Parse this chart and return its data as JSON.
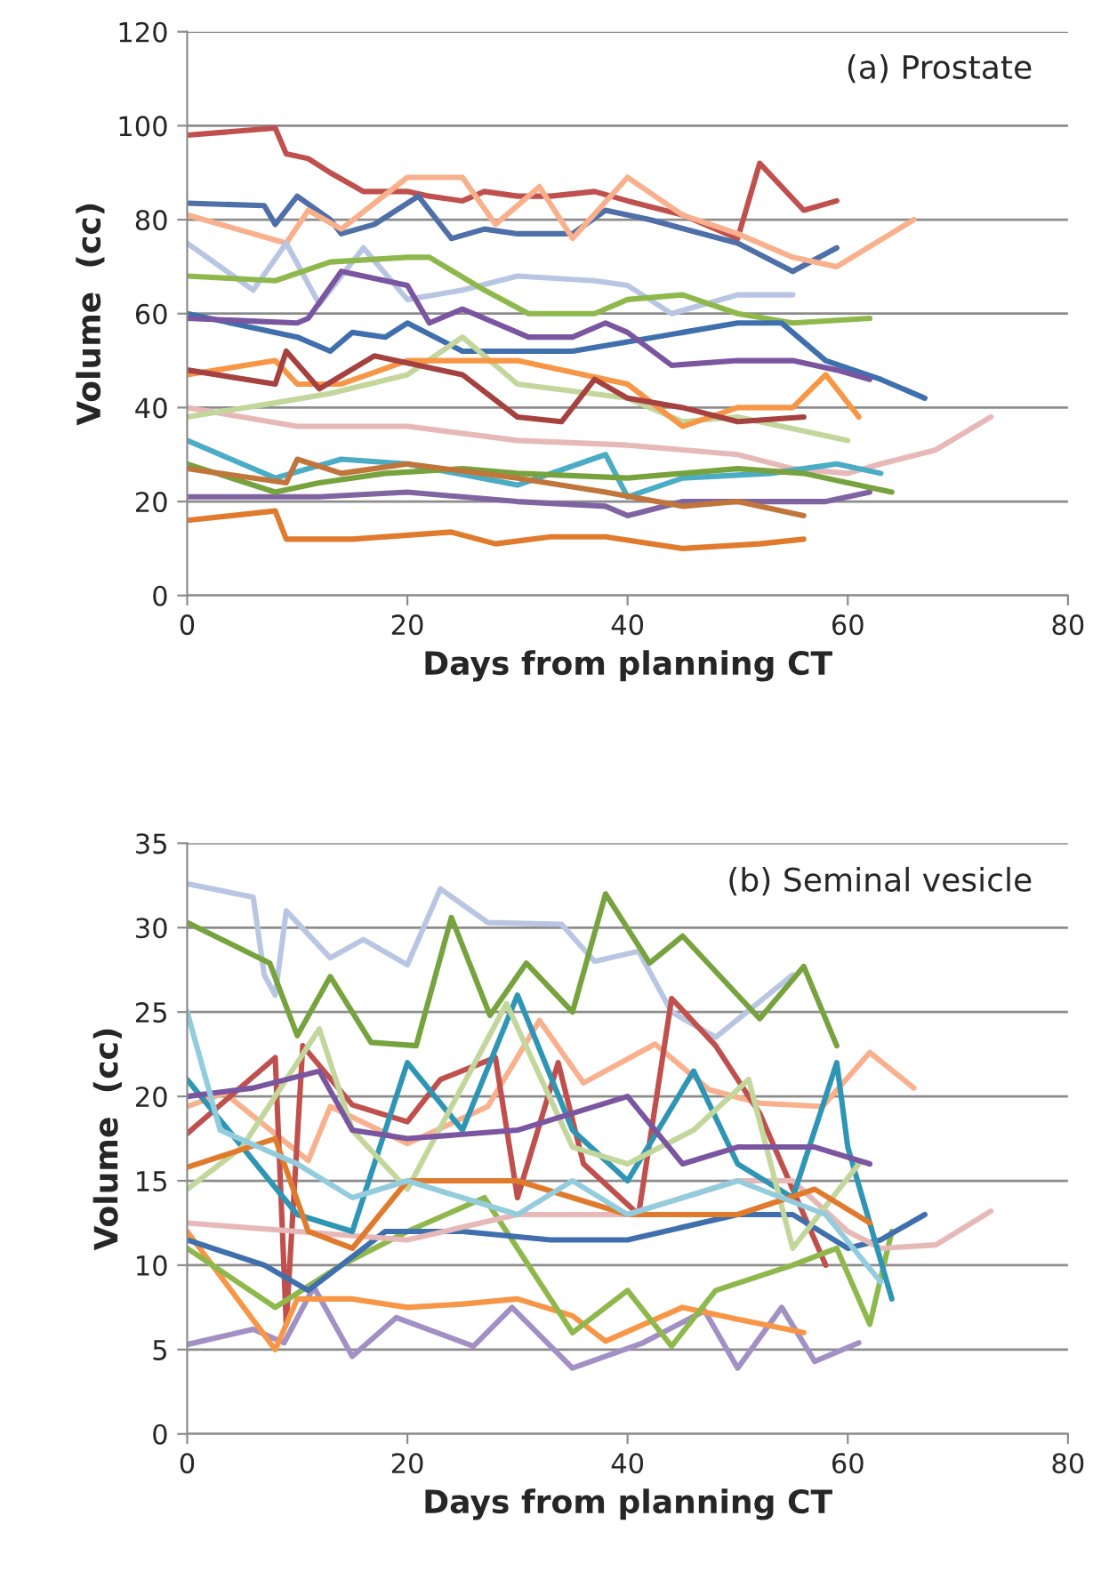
{
  "chart_data": [
    {
      "type": "line",
      "xlabel": "Days from planning CT",
      "ylabel": "Volume  (cc)",
      "annotations": [
        "(a) Prostate"
      ],
      "xlim": [
        0,
        80
      ],
      "xticks": [
        0,
        20,
        40,
        60,
        80
      ],
      "ylim": [
        0,
        120
      ],
      "yticks": [
        0,
        20,
        40,
        60,
        80,
        100,
        120
      ],
      "grid": "y",
      "legend": false,
      "marker": "none",
      "line_style": "solid",
      "series": [
        {
          "color": "#c0504d",
          "x": [
            0,
            8,
            9,
            11,
            13,
            16,
            20,
            22,
            25,
            27,
            30,
            33,
            37,
            40,
            45,
            50,
            52,
            56,
            59
          ],
          "values": [
            98,
            99.5,
            94,
            93,
            90,
            86,
            86,
            85,
            84,
            86,
            85,
            85,
            86,
            84,
            81,
            76,
            92,
            82,
            84
          ]
        },
        {
          "color": "#4f6fa8",
          "x": [
            0,
            7,
            8,
            10,
            13,
            14,
            17,
            21,
            24,
            27,
            30,
            35,
            38,
            42,
            50,
            55,
            59
          ],
          "values": [
            83.5,
            83,
            79,
            85,
            80,
            77,
            79,
            85,
            76,
            78,
            77,
            77,
            82,
            80,
            75,
            69,
            74
          ]
        },
        {
          "color": "#f9b08c",
          "x": [
            0,
            9,
            11,
            14,
            20,
            25,
            28,
            32,
            35,
            40,
            45,
            50,
            55,
            59,
            66
          ],
          "values": [
            81,
            75,
            82,
            78,
            89,
            89,
            79,
            87,
            76,
            89,
            81,
            77,
            72,
            70,
            80
          ]
        },
        {
          "color": "#b9c6e3",
          "x": [
            0,
            6,
            9,
            12,
            16,
            20,
            25,
            30,
            37,
            40,
            44,
            50,
            55
          ],
          "values": [
            75,
            65,
            75,
            62,
            74,
            63,
            65,
            68,
            67,
            66,
            60,
            64,
            64
          ]
        },
        {
          "color": "#8fb84c",
          "x": [
            0,
            8,
            13,
            20,
            22,
            27,
            31,
            37,
            40,
            45,
            50,
            55,
            62
          ],
          "values": [
            68,
            67,
            71,
            72,
            72,
            65,
            60,
            60,
            63,
            64,
            60,
            58,
            59
          ]
        },
        {
          "color": "#3f6fad",
          "x": [
            0,
            10,
            13,
            15,
            18,
            20,
            25,
            30,
            35,
            40,
            45,
            50,
            54,
            58,
            63,
            67
          ],
          "values": [
            60,
            55,
            52,
            56,
            55,
            58,
            52,
            52,
            52,
            54,
            56,
            58,
            58,
            50,
            46,
            42
          ]
        },
        {
          "color": "#7a56a0",
          "x": [
            0,
            10,
            11,
            14,
            20,
            22,
            25,
            31,
            35,
            38,
            40,
            44,
            50,
            55,
            59,
            62
          ],
          "values": [
            59,
            58,
            59,
            69,
            66,
            58,
            61,
            55,
            55,
            58,
            56,
            49,
            50,
            50,
            48,
            46
          ]
        },
        {
          "color": "#e07b2e",
          "x": [
            0,
            8,
            9,
            15,
            24,
            28,
            33,
            38,
            45,
            52,
            56
          ],
          "values": [
            16,
            18,
            12,
            12,
            13.5,
            11,
            12.5,
            12.5,
            10,
            11,
            12
          ]
        },
        {
          "color": "#8064a2",
          "x": [
            0,
            12,
            20,
            30,
            38,
            40,
            45,
            53,
            58,
            62
          ],
          "values": [
            21,
            21,
            22,
            20,
            19,
            17,
            20,
            20,
            20,
            22
          ]
        },
        {
          "color": "#e6b9b8",
          "x": [
            0,
            10,
            20,
            30,
            40,
            50,
            55,
            60,
            63,
            68,
            73
          ],
          "values": [
            40,
            36,
            36,
            33,
            32,
            30,
            27,
            26,
            28,
            31,
            38
          ]
        },
        {
          "color": "#4bacc6",
          "x": [
            0,
            8,
            14,
            20,
            30,
            38,
            40,
            45,
            53,
            59,
            63
          ],
          "values": [
            33,
            25,
            29,
            28,
            23.5,
            30,
            21,
            25,
            26,
            28,
            26
          ]
        },
        {
          "color": "#77a33f",
          "x": [
            0,
            8,
            12,
            18,
            25,
            30,
            40,
            50,
            56,
            60,
            64
          ],
          "values": [
            28,
            22,
            24,
            26,
            27,
            26,
            25,
            27,
            26,
            24,
            22
          ]
        },
        {
          "color": "#c0753a",
          "x": [
            0,
            9,
            10,
            14,
            20,
            30,
            38,
            45,
            50,
            56
          ],
          "values": [
            27,
            24,
            29,
            26,
            28,
            25,
            22,
            19,
            20,
            17
          ]
        },
        {
          "color": "#c3d69b",
          "x": [
            0,
            8,
            13,
            20,
            25,
            30,
            40,
            45,
            50,
            56,
            60
          ],
          "values": [
            38,
            41,
            43,
            47,
            55,
            45,
            42,
            37,
            38,
            35,
            33
          ]
        },
        {
          "color": "#f79646",
          "x": [
            0,
            8,
            10,
            14,
            20,
            30,
            40,
            45,
            50,
            55,
            58,
            61
          ],
          "values": [
            47,
            50,
            45,
            45,
            50,
            50,
            45,
            36,
            40,
            40,
            47,
            38
          ]
        },
        {
          "color": "#a5413e",
          "x": [
            0,
            8,
            9,
            12,
            17,
            25,
            30,
            34,
            37,
            40,
            45,
            50,
            56
          ],
          "values": [
            48,
            45,
            52,
            44,
            51,
            47,
            38,
            37,
            46,
            42,
            40,
            37,
            38
          ]
        }
      ]
    },
    {
      "type": "line",
      "xlabel": "Days from planning CT",
      "ylabel": "Volume  (cc)",
      "annotations": [
        "(b) Seminal vesicle"
      ],
      "xlim": [
        0,
        80
      ],
      "xticks": [
        0,
        20,
        40,
        60,
        80
      ],
      "ylim": [
        0,
        35
      ],
      "yticks": [
        0,
        5,
        10,
        15,
        20,
        25,
        30,
        35
      ],
      "grid": "y",
      "legend": false,
      "marker": "none",
      "line_style": "solid",
      "series": [
        {
          "color": "#b9c6e3",
          "x": [
            0,
            6,
            7,
            8,
            9,
            13,
            16,
            20,
            23,
            27.3,
            34,
            37,
            41,
            44,
            48,
            55
          ],
          "values": [
            32.6,
            31.8,
            27.2,
            26,
            31,
            28.2,
            29.3,
            27.8,
            32.3,
            30.3,
            30.2,
            28,
            28.6,
            25,
            23.5,
            27.2
          ]
        },
        {
          "color": "#77a33f",
          "x": [
            0,
            7.5,
            10,
            13,
            16.7,
            20.8,
            24,
            27.5,
            30.8,
            35,
            38,
            42,
            45,
            52,
            56,
            59
          ],
          "values": [
            30.3,
            27.9,
            23.6,
            27.1,
            23.2,
            23,
            30.6,
            24.8,
            27.9,
            25,
            32,
            27.9,
            29.5,
            24.6,
            27.7,
            23
          ]
        },
        {
          "color": "#f9b08c",
          "x": [
            0,
            3.4,
            11,
            13,
            20,
            27.3,
            32,
            36,
            42.5,
            47.4,
            52,
            57.7,
            62,
            66
          ],
          "values": [
            19.4,
            20.2,
            16.2,
            19.4,
            17.2,
            19.4,
            24.5,
            20.8,
            23.1,
            20.4,
            19.6,
            19.4,
            22.6,
            20.5
          ]
        },
        {
          "color": "#c0504d",
          "x": [
            0,
            8,
            9,
            10.5,
            15,
            20,
            23,
            28,
            30,
            33.7,
            36,
            41,
            44,
            48,
            52,
            58
          ],
          "values": [
            17.8,
            22.3,
            6.5,
            23,
            19.5,
            18.5,
            21,
            22.3,
            14,
            22,
            16,
            13,
            25.8,
            23,
            19,
            10
          ]
        },
        {
          "color": "#a28fc4",
          "x": [
            0,
            6,
            8.8,
            11.5,
            15,
            19,
            26,
            29.5,
            35,
            41.4,
            47,
            50,
            54,
            57,
            61
          ],
          "values": [
            5.3,
            6.2,
            5.4,
            8.7,
            4.6,
            6.9,
            5.2,
            7.5,
            3.9,
            5.4,
            7.3,
            3.9,
            7.5,
            4.3,
            5.4
          ]
        },
        {
          "color": "#f79646",
          "x": [
            0,
            8,
            10,
            15,
            20,
            25,
            30,
            35,
            38,
            45,
            50,
            56
          ],
          "values": [
            12,
            5,
            8,
            8,
            7.5,
            7.7,
            8,
            7,
            5.5,
            7.5,
            6.8,
            6
          ]
        },
        {
          "color": "#8fb84c",
          "x": [
            0,
            8,
            14,
            20,
            27,
            35,
            40,
            44,
            48,
            55,
            59,
            62,
            64
          ],
          "values": [
            11,
            7.5,
            10,
            12,
            14,
            6,
            8.5,
            5.2,
            8.5,
            10,
            11,
            6.5,
            12
          ]
        },
        {
          "color": "#3f6fad",
          "x": [
            0,
            7,
            11,
            18,
            25,
            33,
            40,
            50,
            55,
            60,
            63,
            67
          ],
          "values": [
            11.5,
            10,
            8.5,
            12,
            12,
            11.5,
            11.5,
            13,
            13,
            11,
            11.5,
            13
          ]
        },
        {
          "color": "#e6b9b8",
          "x": [
            0,
            10,
            20,
            30,
            40,
            50,
            55,
            60,
            63,
            68,
            73
          ],
          "values": [
            12.5,
            12,
            11.5,
            13,
            13,
            15,
            15,
            12,
            11,
            11.2,
            13.2
          ]
        },
        {
          "color": "#2f95b5",
          "x": [
            0,
            5,
            10,
            15,
            20,
            25,
            30,
            35,
            40,
            46,
            50,
            55,
            59,
            60,
            64
          ],
          "values": [
            21,
            17,
            13,
            12,
            22,
            18,
            26,
            18,
            15,
            21.5,
            16,
            14,
            22,
            17,
            8
          ]
        },
        {
          "color": "#c3d69b",
          "x": [
            0,
            5,
            12,
            15,
            20,
            29,
            35,
            40,
            46,
            51,
            55,
            61
          ],
          "values": [
            14.5,
            17,
            24,
            18,
            14.5,
            25.5,
            17,
            16,
            18,
            21,
            11,
            16
          ]
        },
        {
          "color": "#7a56a0",
          "x": [
            0,
            6,
            12,
            15,
            20,
            30,
            40,
            45,
            50,
            57,
            62
          ],
          "values": [
            20,
            20.5,
            21.5,
            18,
            17.5,
            18,
            20,
            16,
            17,
            17,
            16
          ]
        },
        {
          "color": "#e07b2e",
          "x": [
            0,
            8,
            11,
            15,
            20,
            30,
            35,
            40,
            50,
            57,
            62
          ],
          "values": [
            15.8,
            17.5,
            12,
            11,
            15,
            15,
            14,
            13,
            13,
            14.5,
            12.5
          ]
        },
        {
          "color": "#93cddd",
          "x": [
            0,
            3,
            10,
            15,
            20,
            25,
            30,
            35,
            40,
            50,
            58,
            63
          ],
          "values": [
            25,
            18,
            16,
            14,
            15,
            14,
            13,
            15,
            13,
            15,
            13,
            9
          ]
        }
      ]
    }
  ]
}
